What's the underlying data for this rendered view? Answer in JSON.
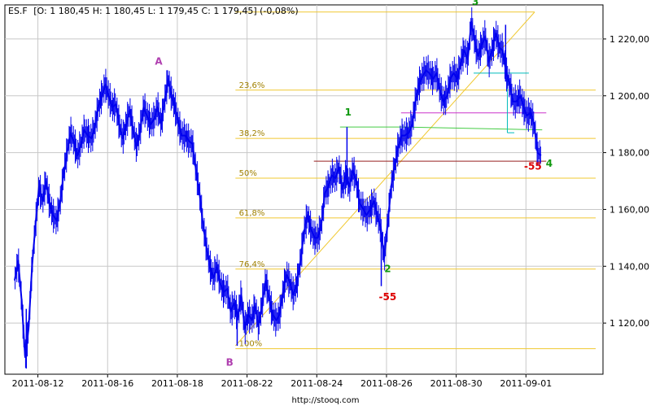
{
  "header": {
    "symbol": "ES.F",
    "ohlc_text": "[O: 1 180,45  H: 1 180,45  L: 1 179,45  C: 1 179,45] (-0,08%)"
  },
  "footer": {
    "source": "http://stooq.com"
  },
  "colors": {
    "price": "#0000ee",
    "grid": "#c8c8c8",
    "fib": "#f0c830",
    "trend": "#f0c830",
    "wave_green": "#119911",
    "wave_purple": "#b040b0",
    "label_red": "#dd0000",
    "cyan": "#00bbbb",
    "green_line": "#44cc44",
    "magenta_line": "#cc33cc",
    "maroon_line": "#992222"
  },
  "chart_data": {
    "type": "line",
    "ylim": [
      1102,
      1232
    ],
    "xlim": [
      0,
      100
    ],
    "x_ticks": [
      {
        "x": 4,
        "label": "2011-08-12"
      },
      {
        "x": 16,
        "label": "2011-08-16"
      },
      {
        "x": 28,
        "label": "2011-08-18"
      },
      {
        "x": 40,
        "label": "2011-08-22"
      },
      {
        "x": 52,
        "label": "2011-08-24"
      },
      {
        "x": 64,
        "label": "2011-08-26"
      },
      {
        "x": 76,
        "label": "2011-08-30"
      },
      {
        "x": 88,
        "label": "2011-09-01"
      }
    ],
    "y_ticks": [
      {
        "value": 1120,
        "label": "1 120,00"
      },
      {
        "value": 1140,
        "label": "1 140,00"
      },
      {
        "value": 1160,
        "label": "1 160,00"
      },
      {
        "value": 1180,
        "label": "1 180,00"
      },
      {
        "value": 1200,
        "label": "1 200,00"
      },
      {
        "value": 1220,
        "label": "1 220,00"
      }
    ],
    "series": [
      {
        "points": [
          [
            0,
            1135
          ],
          [
            0.6,
            1142
          ],
          [
            1.2,
            1128
          ],
          [
            1.8,
            1108
          ],
          [
            2.4,
            1118
          ],
          [
            3,
            1140
          ],
          [
            3.6,
            1155
          ],
          [
            4.2,
            1168
          ],
          [
            4.8,
            1163
          ],
          [
            5.4,
            1170
          ],
          [
            6,
            1162
          ],
          [
            6.6,
            1158
          ],
          [
            7.2,
            1156
          ],
          [
            7.8,
            1162
          ],
          [
            8.4,
            1172
          ],
          [
            9,
            1180
          ],
          [
            9.6,
            1187
          ],
          [
            10.2,
            1184
          ],
          [
            10.8,
            1179
          ],
          [
            11.4,
            1183
          ],
          [
            12,
            1188
          ],
          [
            12.6,
            1186
          ],
          [
            13.2,
            1185
          ],
          [
            13.8,
            1189
          ],
          [
            14.4,
            1196
          ],
          [
            15,
            1200
          ],
          [
            15.6,
            1204
          ],
          [
            16.2,
            1200
          ],
          [
            16.8,
            1196
          ],
          [
            17.4,
            1197
          ],
          [
            18,
            1190
          ],
          [
            18.6,
            1185
          ],
          [
            19.2,
            1190
          ],
          [
            19.8,
            1195
          ],
          [
            20.4,
            1188
          ],
          [
            21,
            1182
          ],
          [
            21.6,
            1188
          ],
          [
            22.2,
            1196
          ],
          [
            22.8,
            1193
          ],
          [
            23.4,
            1190
          ],
          [
            24,
            1192
          ],
          [
            24.6,
            1196
          ],
          [
            25.2,
            1190
          ],
          [
            25.8,
            1198
          ],
          [
            26.4,
            1206
          ],
          [
            27,
            1200
          ],
          [
            27.6,
            1196
          ],
          [
            28.2,
            1190
          ],
          [
            28.8,
            1186
          ],
          [
            29.4,
            1186
          ],
          [
            30,
            1184
          ],
          [
            30.6,
            1183
          ],
          [
            31.2,
            1174
          ],
          [
            31.8,
            1166
          ],
          [
            32.4,
            1155
          ],
          [
            33,
            1147
          ],
          [
            33.6,
            1140
          ],
          [
            34.2,
            1136
          ],
          [
            34.8,
            1140
          ],
          [
            35.4,
            1134
          ],
          [
            36,
            1131
          ],
          [
            36.6,
            1132
          ],
          [
            37.2,
            1124
          ],
          [
            37.8,
            1127
          ],
          [
            38.4,
            1122
          ],
          [
            39,
            1130
          ],
          [
            39.6,
            1118
          ],
          [
            40.2,
            1123
          ],
          [
            40.8,
            1121
          ],
          [
            41.4,
            1126
          ],
          [
            42,
            1119
          ],
          [
            42.6,
            1127
          ],
          [
            43.2,
            1135
          ],
          [
            43.8,
            1129
          ],
          [
            44.4,
            1123
          ],
          [
            45,
            1121
          ],
          [
            45.6,
            1123
          ],
          [
            46.2,
            1131
          ],
          [
            46.8,
            1137
          ],
          [
            47.4,
            1134
          ],
          [
            48,
            1130
          ],
          [
            48.6,
            1134
          ],
          [
            49.2,
            1142
          ],
          [
            49.8,
            1152
          ],
          [
            50.4,
            1158
          ],
          [
            51,
            1153
          ],
          [
            51.6,
            1150
          ],
          [
            52.2,
            1150
          ],
          [
            52.8,
            1155
          ],
          [
            53.4,
            1166
          ],
          [
            54,
            1168
          ],
          [
            54.6,
            1172
          ],
          [
            55.2,
            1171
          ],
          [
            55.8,
            1175
          ],
          [
            56.4,
            1167
          ],
          [
            57,
            1172
          ],
          [
            57.6,
            1168
          ],
          [
            58.2,
            1174
          ],
          [
            58.8,
            1170
          ],
          [
            59.4,
            1162
          ],
          [
            60,
            1160
          ],
          [
            60.6,
            1158
          ],
          [
            61.2,
            1160
          ],
          [
            61.8,
            1163
          ],
          [
            62.4,
            1158
          ],
          [
            63,
            1154
          ],
          [
            63.6,
            1143
          ],
          [
            64.2,
            1155
          ],
          [
            64.8,
            1168
          ],
          [
            65.4,
            1175
          ],
          [
            66,
            1182
          ],
          [
            66.6,
            1186
          ],
          [
            67.2,
            1186
          ],
          [
            67.8,
            1187
          ],
          [
            68.4,
            1190
          ],
          [
            69,
            1198
          ],
          [
            69.6,
            1204
          ],
          [
            70.2,
            1207
          ],
          [
            70.8,
            1209
          ],
          [
            71.4,
            1208
          ],
          [
            72,
            1206
          ],
          [
            72.6,
            1208
          ],
          [
            73.2,
            1202
          ],
          [
            73.8,
            1198
          ],
          [
            74.4,
            1200
          ],
          [
            75,
            1206
          ],
          [
            75.6,
            1208
          ],
          [
            76.2,
            1206
          ],
          [
            76.8,
            1212
          ],
          [
            77.4,
            1216
          ],
          [
            78,
            1213
          ],
          [
            78.6,
            1226
          ],
          [
            79.2,
            1219
          ],
          [
            79.8,
            1214
          ],
          [
            80.4,
            1218
          ],
          [
            81,
            1221
          ],
          [
            81.6,
            1212
          ],
          [
            82.2,
            1216
          ],
          [
            82.8,
            1222
          ],
          [
            83.4,
            1217
          ],
          [
            84,
            1216
          ],
          [
            84.6,
            1208
          ],
          [
            85.2,
            1204
          ],
          [
            85.8,
            1198
          ],
          [
            86.4,
            1198
          ],
          [
            87,
            1200
          ],
          [
            87.6,
            1196
          ],
          [
            88.2,
            1193
          ],
          [
            88.8,
            1194
          ],
          [
            89.4,
            1190
          ],
          [
            90,
            1180
          ],
          [
            90.6,
            1179
          ]
        ]
      }
    ],
    "fib_levels": [
      {
        "label": "23,6%",
        "value": 1202
      },
      {
        "label": "38,2%",
        "value": 1185
      },
      {
        "label": "50%",
        "value": 1171
      },
      {
        "label": "61,8%",
        "value": 1157
      },
      {
        "label": "76,4%",
        "value": 1139
      },
      {
        "label": "100%",
        "value": 1111
      }
    ],
    "trendline": {
      "x1": 38,
      "y1": 1112,
      "x2": 89.5,
      "y2": 1229.5
    },
    "top_line": {
      "x1": 38,
      "y1": 1229.5,
      "x2": 89.5,
      "y2": 1229.5
    },
    "wave_labels": [
      {
        "text": "A",
        "x": 24.8,
        "y": 1211,
        "color": "purple"
      },
      {
        "text": "B",
        "x": 37,
        "y": 1105,
        "color": "purple"
      },
      {
        "text": "1",
        "x": 57.4,
        "y": 1193,
        "color": "green"
      },
      {
        "text": "2",
        "x": 64.2,
        "y": 1138,
        "color": "green"
      },
      {
        "text": "3",
        "x": 79.3,
        "y": 1232,
        "color": "green"
      },
      {
        "text": "4",
        "x": 92,
        "y": 1175,
        "color": "green"
      }
    ],
    "annotations": [
      {
        "text": "-55",
        "x": 64.2,
        "y": 1128,
        "color": "red"
      },
      {
        "text": "-55",
        "x": 89.2,
        "y": 1174,
        "color": "red"
      }
    ],
    "extra_lines": [
      {
        "color": "green_line",
        "x1": 56.0,
        "y1": 1189,
        "x2": 67.5,
        "y2": 1189
      },
      {
        "color": "green_line",
        "x1": 67.5,
        "y1": 1189,
        "x2": 90.8,
        "y2": 1188
      },
      {
        "color": "magenta_line",
        "x1": 66.5,
        "y1": 1194,
        "x2": 91.5,
        "y2": 1194
      },
      {
        "color": "maroon_line",
        "x1": 51.5,
        "y1": 1177,
        "x2": 91.5,
        "y2": 1177
      },
      {
        "color": "cyan",
        "x1": 79.0,
        "y1": 1208,
        "x2": 88.5,
        "y2": 1208
      },
      {
        "color": "cyan",
        "x1": 84.8,
        "y1": 1208,
        "x2": 84.8,
        "y2": 1187
      },
      {
        "color": "cyan",
        "x1": 84.8,
        "y1": 1187,
        "x2": 86.0,
        "y2": 1187
      }
    ],
    "spikes": [
      {
        "x": 57.2,
        "lo": 1169,
        "hi": 1189
      },
      {
        "x": 63.1,
        "lo": 1133,
        "hi": 1150
      },
      {
        "x": 2.0,
        "lo": 1104,
        "hi": 1125
      },
      {
        "x": 38.3,
        "lo": 1112,
        "hi": 1124
      },
      {
        "x": 84.5,
        "lo": 1205,
        "hi": 1225
      }
    ]
  }
}
